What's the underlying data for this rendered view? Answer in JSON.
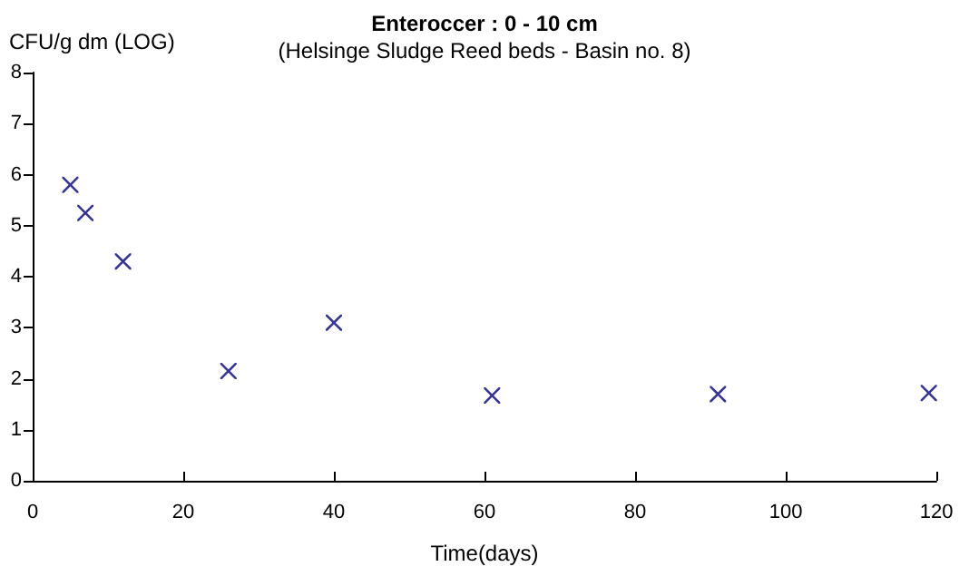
{
  "chart_data": {
    "type": "scatter",
    "title": "Enteroccer : 0 - 10 cm",
    "subtitle": "(Helsinge Sludge Reed beds - Basin no. 8)",
    "xlabel": "Time(days)",
    "ylabel": "CFU/g dm (LOG)",
    "x": [
      5,
      7,
      12,
      26,
      40,
      61,
      91,
      119
    ],
    "series": [
      {
        "color": "#000080",
        "values": [
          5.8,
          5.25,
          4.3,
          2.15,
          3.1,
          1.67,
          1.7,
          1.72
        ]
      }
    ],
    "xlim": [
      0,
      120
    ],
    "xticks": [
      0,
      20,
      40,
      60,
      80,
      100,
      120
    ],
    "ylim": [
      0,
      8
    ],
    "yticks": [
      0,
      1,
      2,
      3,
      4,
      5,
      6,
      7,
      8
    ],
    "grid": false,
    "marker": "cross"
  }
}
